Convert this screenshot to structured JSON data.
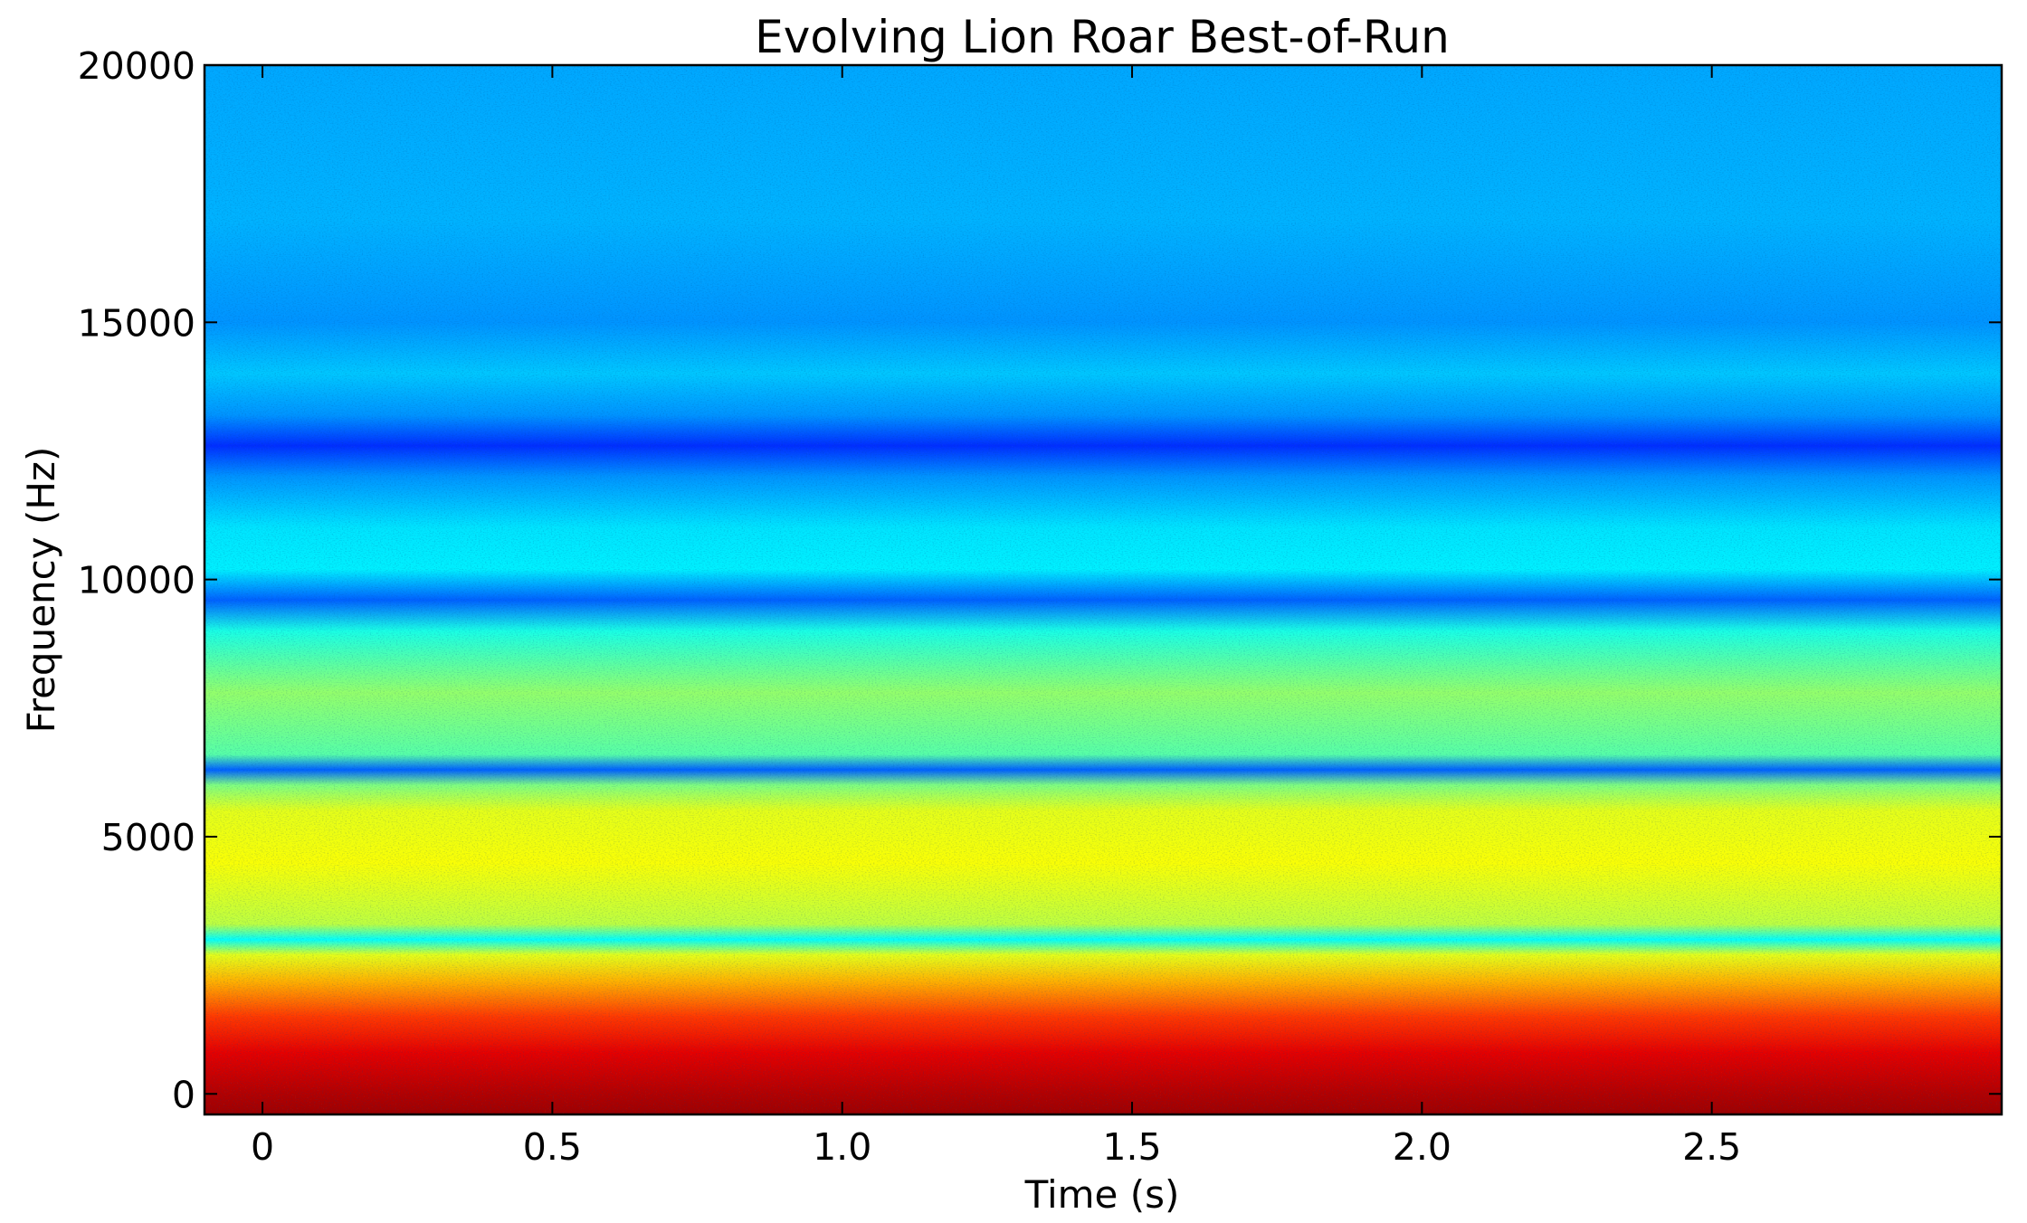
{
  "chart_data": {
    "type": "heatmap",
    "title": "Evolving Lion Roar Best-of-Run",
    "xlabel": "Time (s)",
    "ylabel": "Frequency (Hz)",
    "xlim": [
      -0.1,
      3.0
    ],
    "ylim": [
      -400,
      20000
    ],
    "x_ticks": [
      {
        "value": 0,
        "label": "0"
      },
      {
        "value": 0.5,
        "label": "0.5"
      },
      {
        "value": 1.0,
        "label": "1.0"
      },
      {
        "value": 1.5,
        "label": "1.5"
      },
      {
        "value": 2.0,
        "label": "2.0"
      },
      {
        "value": 2.5,
        "label": "2.5"
      }
    ],
    "y_ticks": [
      {
        "value": 0,
        "label": "0"
      },
      {
        "value": 5000,
        "label": "5000"
      },
      {
        "value": 10000,
        "label": "10000"
      },
      {
        "value": 15000,
        "label": "15000"
      },
      {
        "value": 20000,
        "label": "20000"
      }
    ],
    "colormap": "jet",
    "grid": false,
    "legend": "none",
    "intensity_profile": [
      {
        "frequency": -400,
        "level": 0.97
      },
      {
        "frequency": 0,
        "level": 0.95
      },
      {
        "frequency": 800,
        "level": 0.9
      },
      {
        "frequency": 1500,
        "level": 0.82
      },
      {
        "frequency": 2200,
        "level": 0.7
      },
      {
        "frequency": 2700,
        "level": 0.6
      },
      {
        "frequency": 3000,
        "level": 0.38
      },
      {
        "frequency": 3300,
        "level": 0.56
      },
      {
        "frequency": 4500,
        "level": 0.62
      },
      {
        "frequency": 5500,
        "level": 0.6
      },
      {
        "frequency": 6000,
        "level": 0.5
      },
      {
        "frequency": 6300,
        "level": 0.22
      },
      {
        "frequency": 6600,
        "level": 0.46
      },
      {
        "frequency": 7800,
        "level": 0.52
      },
      {
        "frequency": 9000,
        "level": 0.4
      },
      {
        "frequency": 9600,
        "level": 0.22
      },
      {
        "frequency": 10200,
        "level": 0.36
      },
      {
        "frequency": 11000,
        "level": 0.35
      },
      {
        "frequency": 12000,
        "level": 0.27
      },
      {
        "frequency": 12600,
        "level": 0.17
      },
      {
        "frequency": 13200,
        "level": 0.27
      },
      {
        "frequency": 14000,
        "level": 0.32
      },
      {
        "frequency": 15000,
        "level": 0.27
      },
      {
        "frequency": 17000,
        "level": 0.3
      },
      {
        "frequency": 20000,
        "level": 0.29
      }
    ]
  }
}
